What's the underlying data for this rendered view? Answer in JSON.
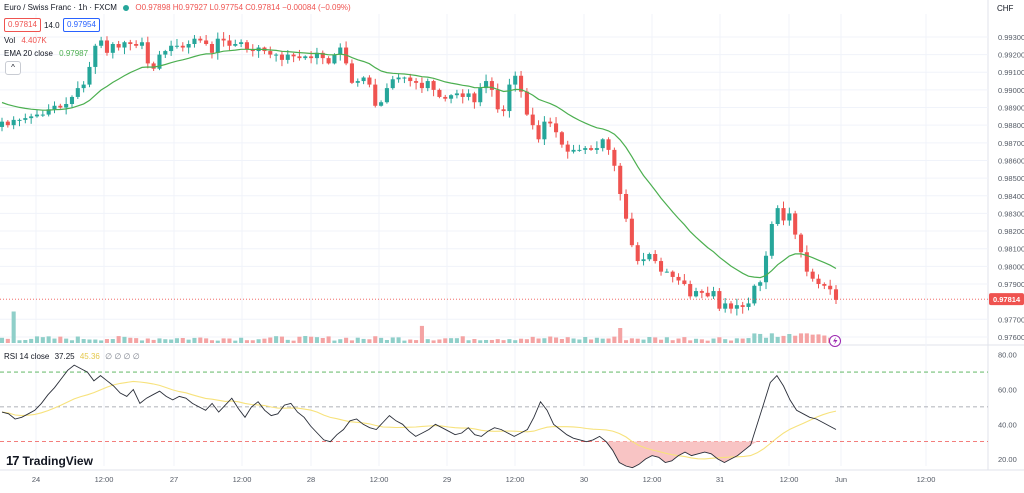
{
  "header": {
    "symbol": "Euro / Swiss Franc · 1h · FXCM",
    "ohlc": "O0.97898 H0.97927 L0.97754 C0.97814 −0.00084 (−0.09%)",
    "bid": "0.97814",
    "spread": "14.0",
    "ask": "0.97954",
    "vol_label": "Vol",
    "vol_value": "4.407K",
    "ema_label": "EMA 20 close",
    "ema_value": "0.97987",
    "rsi_label": "RSI 14 close",
    "rsi_value": "37.25",
    "rsi_ma_value": "45.36",
    "rsi_extra": "∅ ∅ ∅ ∅",
    "currency": "CHF",
    "collapse_icon": "chevron-up-icon"
  },
  "branding": {
    "logo_text": "TradingView",
    "logo_mark": "17"
  },
  "colors": {
    "up": "#26a69a",
    "down": "#ef5350",
    "ema": "#4caf50",
    "rsi": "#2a2e39",
    "rsi_ma": "#f7e27c",
    "rsi_oversold_fill": "#f8c4c4",
    "grid": "#f0f3fa",
    "text": "#131722",
    "axis_text": "#555b66",
    "price_label_bg": "#ef5350",
    "vol_up": "#8fcfc9",
    "vol_down": "#f4a3a3"
  },
  "chart_data": [
    {
      "type": "candlestick",
      "title": "Euro / Swiss Franc · 1h · FXCM",
      "x_tick_labels": [
        "24",
        "12:00",
        "27",
        "12:00",
        "28",
        "12:00",
        "29",
        "12:00",
        "30",
        "12:00",
        "31",
        "12:00",
        "Jun",
        "12:00"
      ],
      "y_tick_labels": [
        "0.99300",
        "0.99200",
        "0.99100",
        "0.99000",
        "0.98900",
        "0.98800",
        "0.98700",
        "0.98600",
        "0.98500",
        "0.98400",
        "0.98300",
        "0.98200",
        "0.98100",
        "0.98000",
        "0.97900",
        "0.97700",
        "0.97600"
      ],
      "ylim": [
        0.9756,
        0.9943
      ],
      "last_price": 0.97814,
      "last_price_label": "0.97814",
      "closes": [
        0.9882,
        0.988,
        0.9883,
        0.9883,
        0.9884,
        0.9885,
        0.9886,
        0.9886,
        0.9889,
        0.9891,
        0.989,
        0.9892,
        0.9896,
        0.9901,
        0.9903,
        0.9913,
        0.9925,
        0.9928,
        0.9921,
        0.9926,
        0.9924,
        0.9927,
        0.9926,
        0.9925,
        0.9927,
        0.9915,
        0.9912,
        0.992,
        0.9922,
        0.9925,
        0.9925,
        0.9924,
        0.9926,
        0.9929,
        0.9928,
        0.9926,
        0.9921,
        0.9929,
        0.9928,
        0.9925,
        0.9926,
        0.9927,
        0.9923,
        0.9922,
        0.9924,
        0.9922,
        0.992,
        0.992,
        0.9917,
        0.992,
        0.9919,
        0.9918,
        0.9919,
        0.9918,
        0.9921,
        0.9918,
        0.9915,
        0.992,
        0.9924,
        0.9915,
        0.9904,
        0.9905,
        0.9907,
        0.9903,
        0.9891,
        0.9893,
        0.9901,
        0.9906,
        0.9907,
        0.9907,
        0.9905,
        0.9904,
        0.9901,
        0.9905,
        0.99,
        0.9896,
        0.9895,
        0.9897,
        0.9898,
        0.9896,
        0.9898,
        0.9893,
        0.9901,
        0.9905,
        0.99,
        0.9889,
        0.9888,
        0.9903,
        0.9908,
        0.9899,
        0.9886,
        0.988,
        0.9872,
        0.9882,
        0.9881,
        0.9876,
        0.9869,
        0.9865,
        0.9866,
        0.9866,
        0.9867,
        0.9866,
        0.9867,
        0.9872,
        0.9866,
        0.9857,
        0.9841,
        0.9827,
        0.9812,
        0.9803,
        0.9804,
        0.9807,
        0.9803,
        0.9797,
        0.9797,
        0.9794,
        0.9792,
        0.979,
        0.9783,
        0.9786,
        0.9785,
        0.9783,
        0.9786,
        0.9776,
        0.9779,
        0.9776,
        0.9778,
        0.9777,
        0.9779,
        0.9789,
        0.9791,
        0.9806,
        0.9824,
        0.9833,
        0.9826,
        0.983,
        0.9818,
        0.9808,
        0.9797,
        0.9793,
        0.979,
        0.9789,
        0.9787,
        0.9781
      ]
    },
    {
      "type": "line",
      "series": [
        {
          "name": "EMA 20 close",
          "source": "computed from closes",
          "last_value": 0.97987
        }
      ]
    },
    {
      "type": "bar",
      "series": [
        {
          "name": "Vol",
          "last_value": "4.407K",
          "spikes": [
            {
              "bar": 2,
              "value": 10.5
            },
            {
              "bar": 72,
              "value": 5.7
            },
            {
              "bar": 106,
              "value": 5.0
            }
          ],
          "baseline": 1.3
        }
      ]
    },
    {
      "type": "line",
      "series": [
        {
          "name": "RSI 14 close",
          "last_value": 37.25,
          "values": [
            47,
            46,
            43,
            44,
            46,
            48,
            52,
            57,
            61,
            66,
            71,
            74,
            72,
            70,
            65,
            68,
            65,
            62,
            58,
            56,
            60,
            52,
            55,
            57,
            59,
            56,
            54,
            56,
            55,
            52,
            50,
            48,
            52,
            47,
            51,
            55,
            49,
            44,
            50,
            53,
            48,
            45,
            46,
            51,
            52,
            47,
            44,
            39,
            35,
            31,
            30,
            34,
            37,
            42,
            43,
            40,
            38,
            37,
            41,
            45,
            42,
            40,
            36,
            33,
            35,
            37,
            40,
            38,
            36,
            34,
            35,
            38,
            34,
            33,
            36,
            38,
            37,
            35,
            33,
            35,
            37,
            44,
            53,
            48,
            40,
            37,
            34,
            32,
            31,
            30,
            31,
            33,
            30,
            25,
            18,
            16,
            15,
            17,
            20,
            22,
            21,
            18,
            19,
            22,
            24,
            22,
            23,
            24,
            23,
            20,
            18,
            20,
            22,
            25,
            28,
            40,
            52,
            64,
            68,
            62,
            54,
            48,
            46,
            44,
            43,
            41,
            39,
            37
          ]
        },
        {
          "name": "RSI MA",
          "last_value": 45.36
        }
      ],
      "y_tick_labels": [
        "80.00",
        "60.00",
        "40.00",
        "20.00"
      ],
      "ylim": [
        16,
        85
      ],
      "levels": [
        70,
        50,
        30
      ]
    }
  ]
}
